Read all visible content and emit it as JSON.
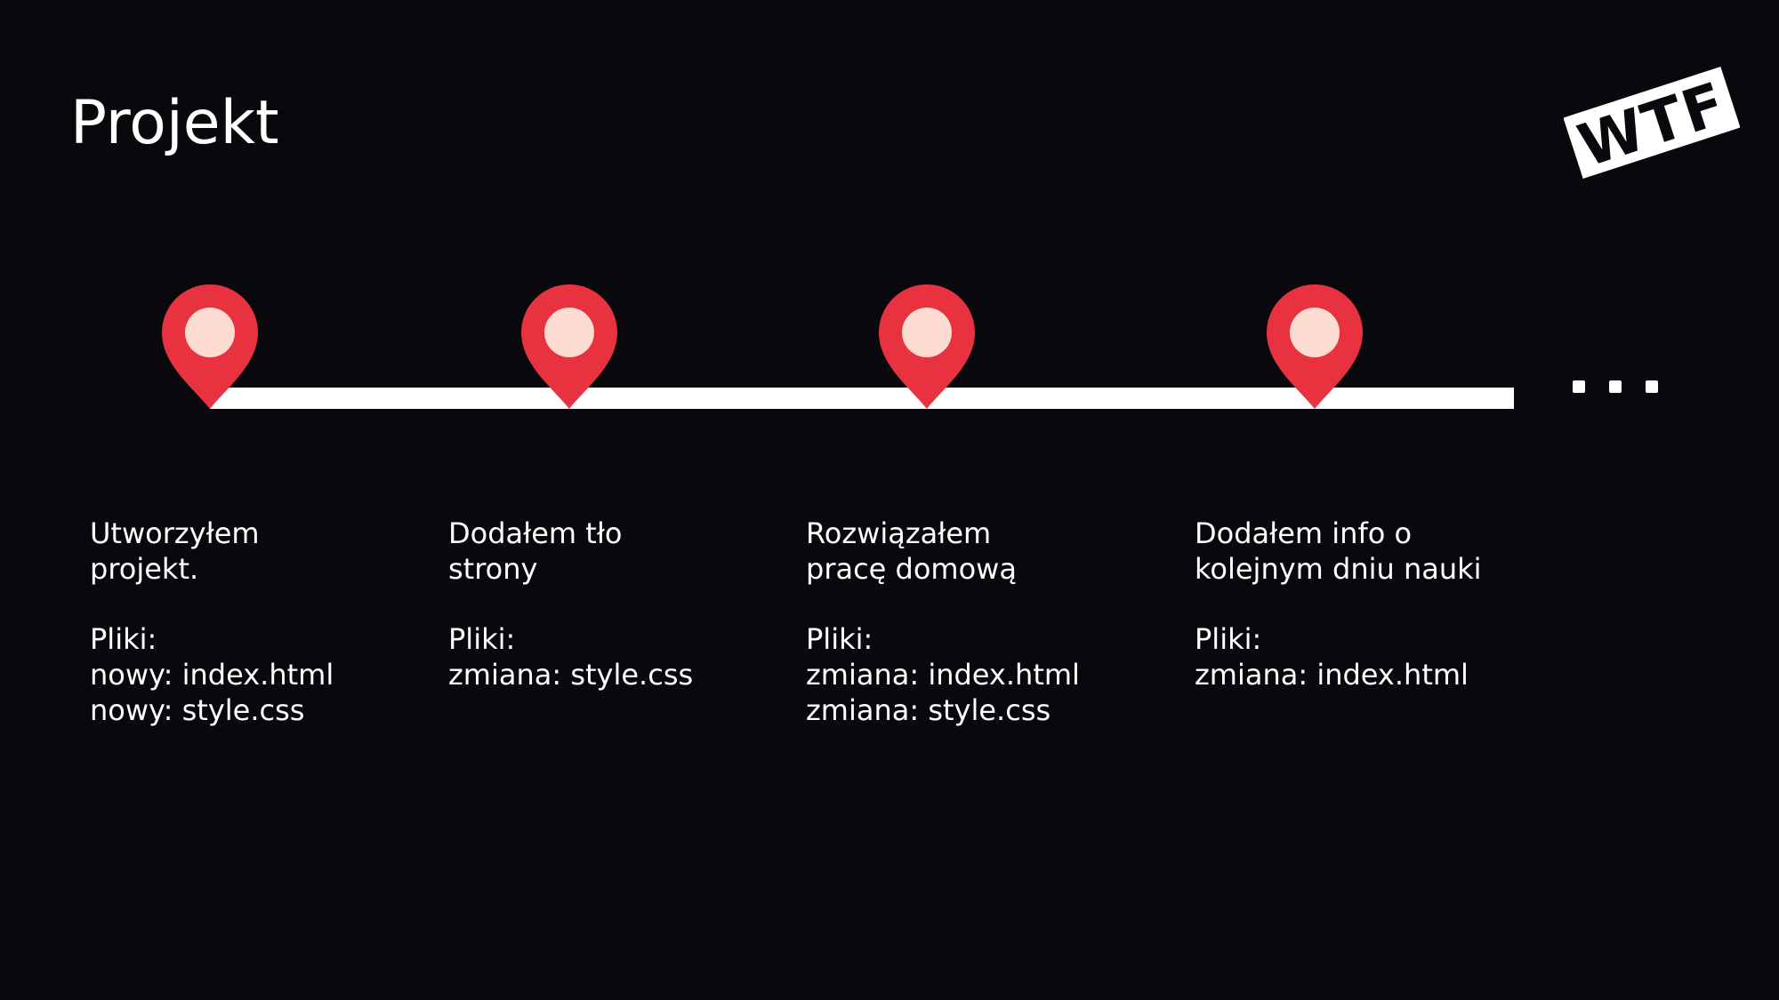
{
  "title": "Projekt",
  "logo": {
    "text": "WTF"
  },
  "colors": {
    "background": "#09080c",
    "pin": "#e8323f",
    "pin_center": "#fcdcd0",
    "timeline": "#ffffff"
  },
  "events": [
    {
      "desc_lines": [
        "Utworzyłem",
        "projekt."
      ],
      "files_label": "Pliki:",
      "files": [
        "nowy: index.html",
        "nowy: style.css"
      ]
    },
    {
      "desc_lines": [
        "Dodałem tło",
        "strony"
      ],
      "files_label": "Pliki:",
      "files": [
        "zmiana: style.css"
      ]
    },
    {
      "desc_lines": [
        "Rozwiązałem",
        "pracę domową"
      ],
      "files_label": "Pliki:",
      "files": [
        "zmiana: index.html",
        "zmiana: style.css"
      ]
    },
    {
      "desc_lines": [
        "Dodałem info o",
        "kolejnym dniu nauki"
      ],
      "files_label": "Pliki:",
      "files": [
        "zmiana: index.html"
      ]
    }
  ],
  "continuation_icon": "ellipsis-icon"
}
